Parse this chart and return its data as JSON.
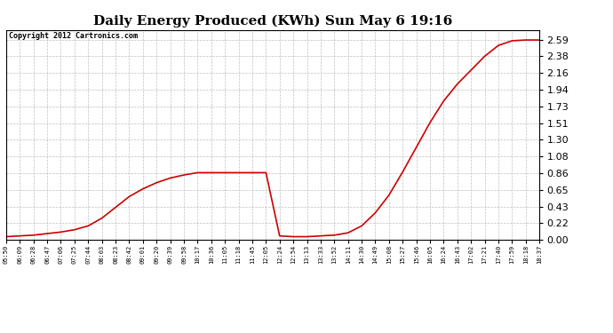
{
  "title": "Daily Energy Produced (KWh) Sun May 6 19:16",
  "copyright": "Copyright 2012 Cartronics.com",
  "line_color": "#cc0000",
  "bg_color": "#ffffff",
  "plot_bg_color": "#ffffff",
  "grid_color": "#b0b0b0",
  "ylim": [
    0.0,
    2.72
  ],
  "yticks": [
    0.0,
    0.22,
    0.43,
    0.65,
    0.86,
    1.08,
    1.3,
    1.51,
    1.73,
    1.94,
    2.16,
    2.38,
    2.59
  ],
  "xtick_labels": [
    "05:50",
    "06:09",
    "06:28",
    "06:47",
    "07:06",
    "07:25",
    "07:44",
    "08:03",
    "08:23",
    "08:42",
    "09:01",
    "09:20",
    "09:39",
    "09:58",
    "10:17",
    "10:36",
    "11:05",
    "11:18",
    "11:45",
    "12:05",
    "12:24",
    "12:54",
    "13:13",
    "13:33",
    "13:52",
    "14:11",
    "14:30",
    "14:49",
    "15:08",
    "15:27",
    "15:46",
    "16:05",
    "16:24",
    "16:43",
    "17:02",
    "17:21",
    "17:40",
    "17:59",
    "18:18",
    "18:37"
  ],
  "x_data": [
    0,
    1,
    2,
    3,
    4,
    5,
    6,
    7,
    8,
    9,
    10,
    11,
    12,
    13,
    14,
    15,
    16,
    17,
    18,
    19,
    20,
    21,
    22,
    23,
    24,
    25,
    26,
    27,
    28,
    29,
    30,
    31,
    32,
    33,
    34,
    35,
    36,
    37,
    38,
    39
  ],
  "y_data": [
    0.04,
    0.05,
    0.06,
    0.08,
    0.1,
    0.13,
    0.18,
    0.28,
    0.42,
    0.56,
    0.66,
    0.74,
    0.8,
    0.84,
    0.87,
    0.87,
    0.87,
    0.87,
    0.87,
    0.87,
    0.05,
    0.04,
    0.04,
    0.05,
    0.06,
    0.09,
    0.18,
    0.35,
    0.58,
    0.88,
    1.2,
    1.52,
    1.8,
    2.02,
    2.2,
    2.38,
    2.52,
    2.58,
    2.59,
    2.59
  ],
  "title_fontsize": 11,
  "copyright_fontsize": 6,
  "ytick_fontsize": 8,
  "xtick_fontsize": 5,
  "linewidth": 1.2
}
